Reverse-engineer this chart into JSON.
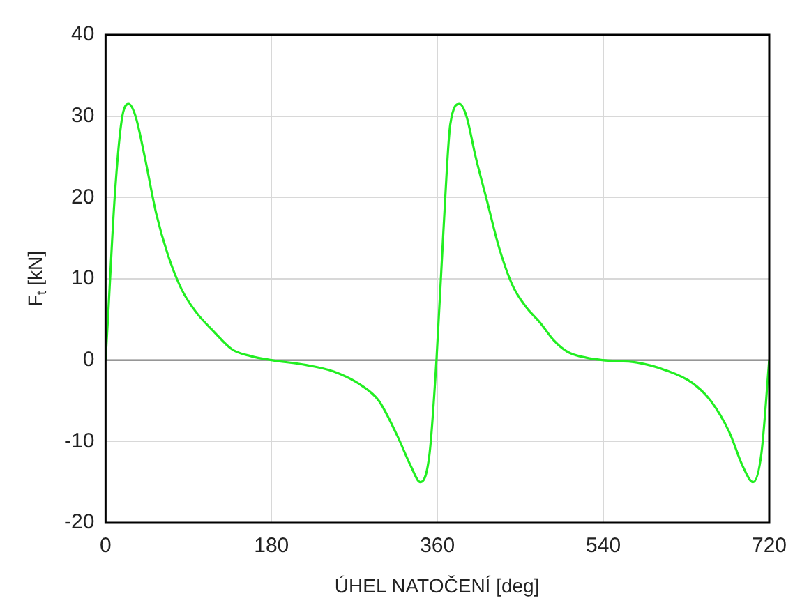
{
  "chart_data": {
    "type": "line",
    "xlabel": "ÚHEL NATOČENÍ [deg]",
    "ylabel": "F$_{t}$ [kN]",
    "x": [
      0,
      2.5,
      10,
      17.5,
      25,
      32.5,
      42.5,
      55,
      67.5,
      82.5,
      97.5,
      117.5,
      137.5,
      157.5,
      180,
      217.5,
      247.5,
      277.5,
      296.5,
      316.5,
      331.5,
      341.5,
      351.5,
      359,
      366.5,
      374,
      384,
      391.5,
      401.5,
      414,
      426.5,
      441.5,
      456.5,
      471.5,
      486.5,
      501.5,
      521.5,
      539,
      576.5,
      606.5,
      636.5,
      656.5,
      676.5,
      691.5,
      702.5,
      711.5,
      720
    ],
    "series": [
      {
        "color": "#22ee22",
        "values": [
          0,
          4.9,
          20.2,
          29.5,
          31.5,
          30,
          25,
          18,
          13,
          8.7,
          6,
          3.5,
          1.3,
          0.5,
          0,
          -0.6,
          -1.4,
          -3.1,
          -5,
          -9.3,
          -13.1,
          -15,
          -11.5,
          0,
          15.8,
          29,
          31.5,
          30,
          25,
          19.5,
          14,
          9.2,
          6.5,
          4.6,
          2.4,
          1,
          0.3,
          0,
          -0.3,
          -1.2,
          -2.8,
          -5,
          -8.8,
          -13.1,
          -15,
          -11.5,
          0
        ]
      }
    ],
    "xlim": [
      0,
      720
    ],
    "xticks": [
      0,
      180,
      360,
      540,
      720
    ],
    "ylim": [
      -20,
      40
    ],
    "yticks": [
      -20,
      -10,
      0,
      10,
      20,
      30,
      40
    ],
    "grid": true,
    "legend": false,
    "marker": "none",
    "line_style": "solid",
    "ref_lines": [
      {
        "axis": "y",
        "value": 0,
        "color": "#808080"
      }
    ]
  }
}
